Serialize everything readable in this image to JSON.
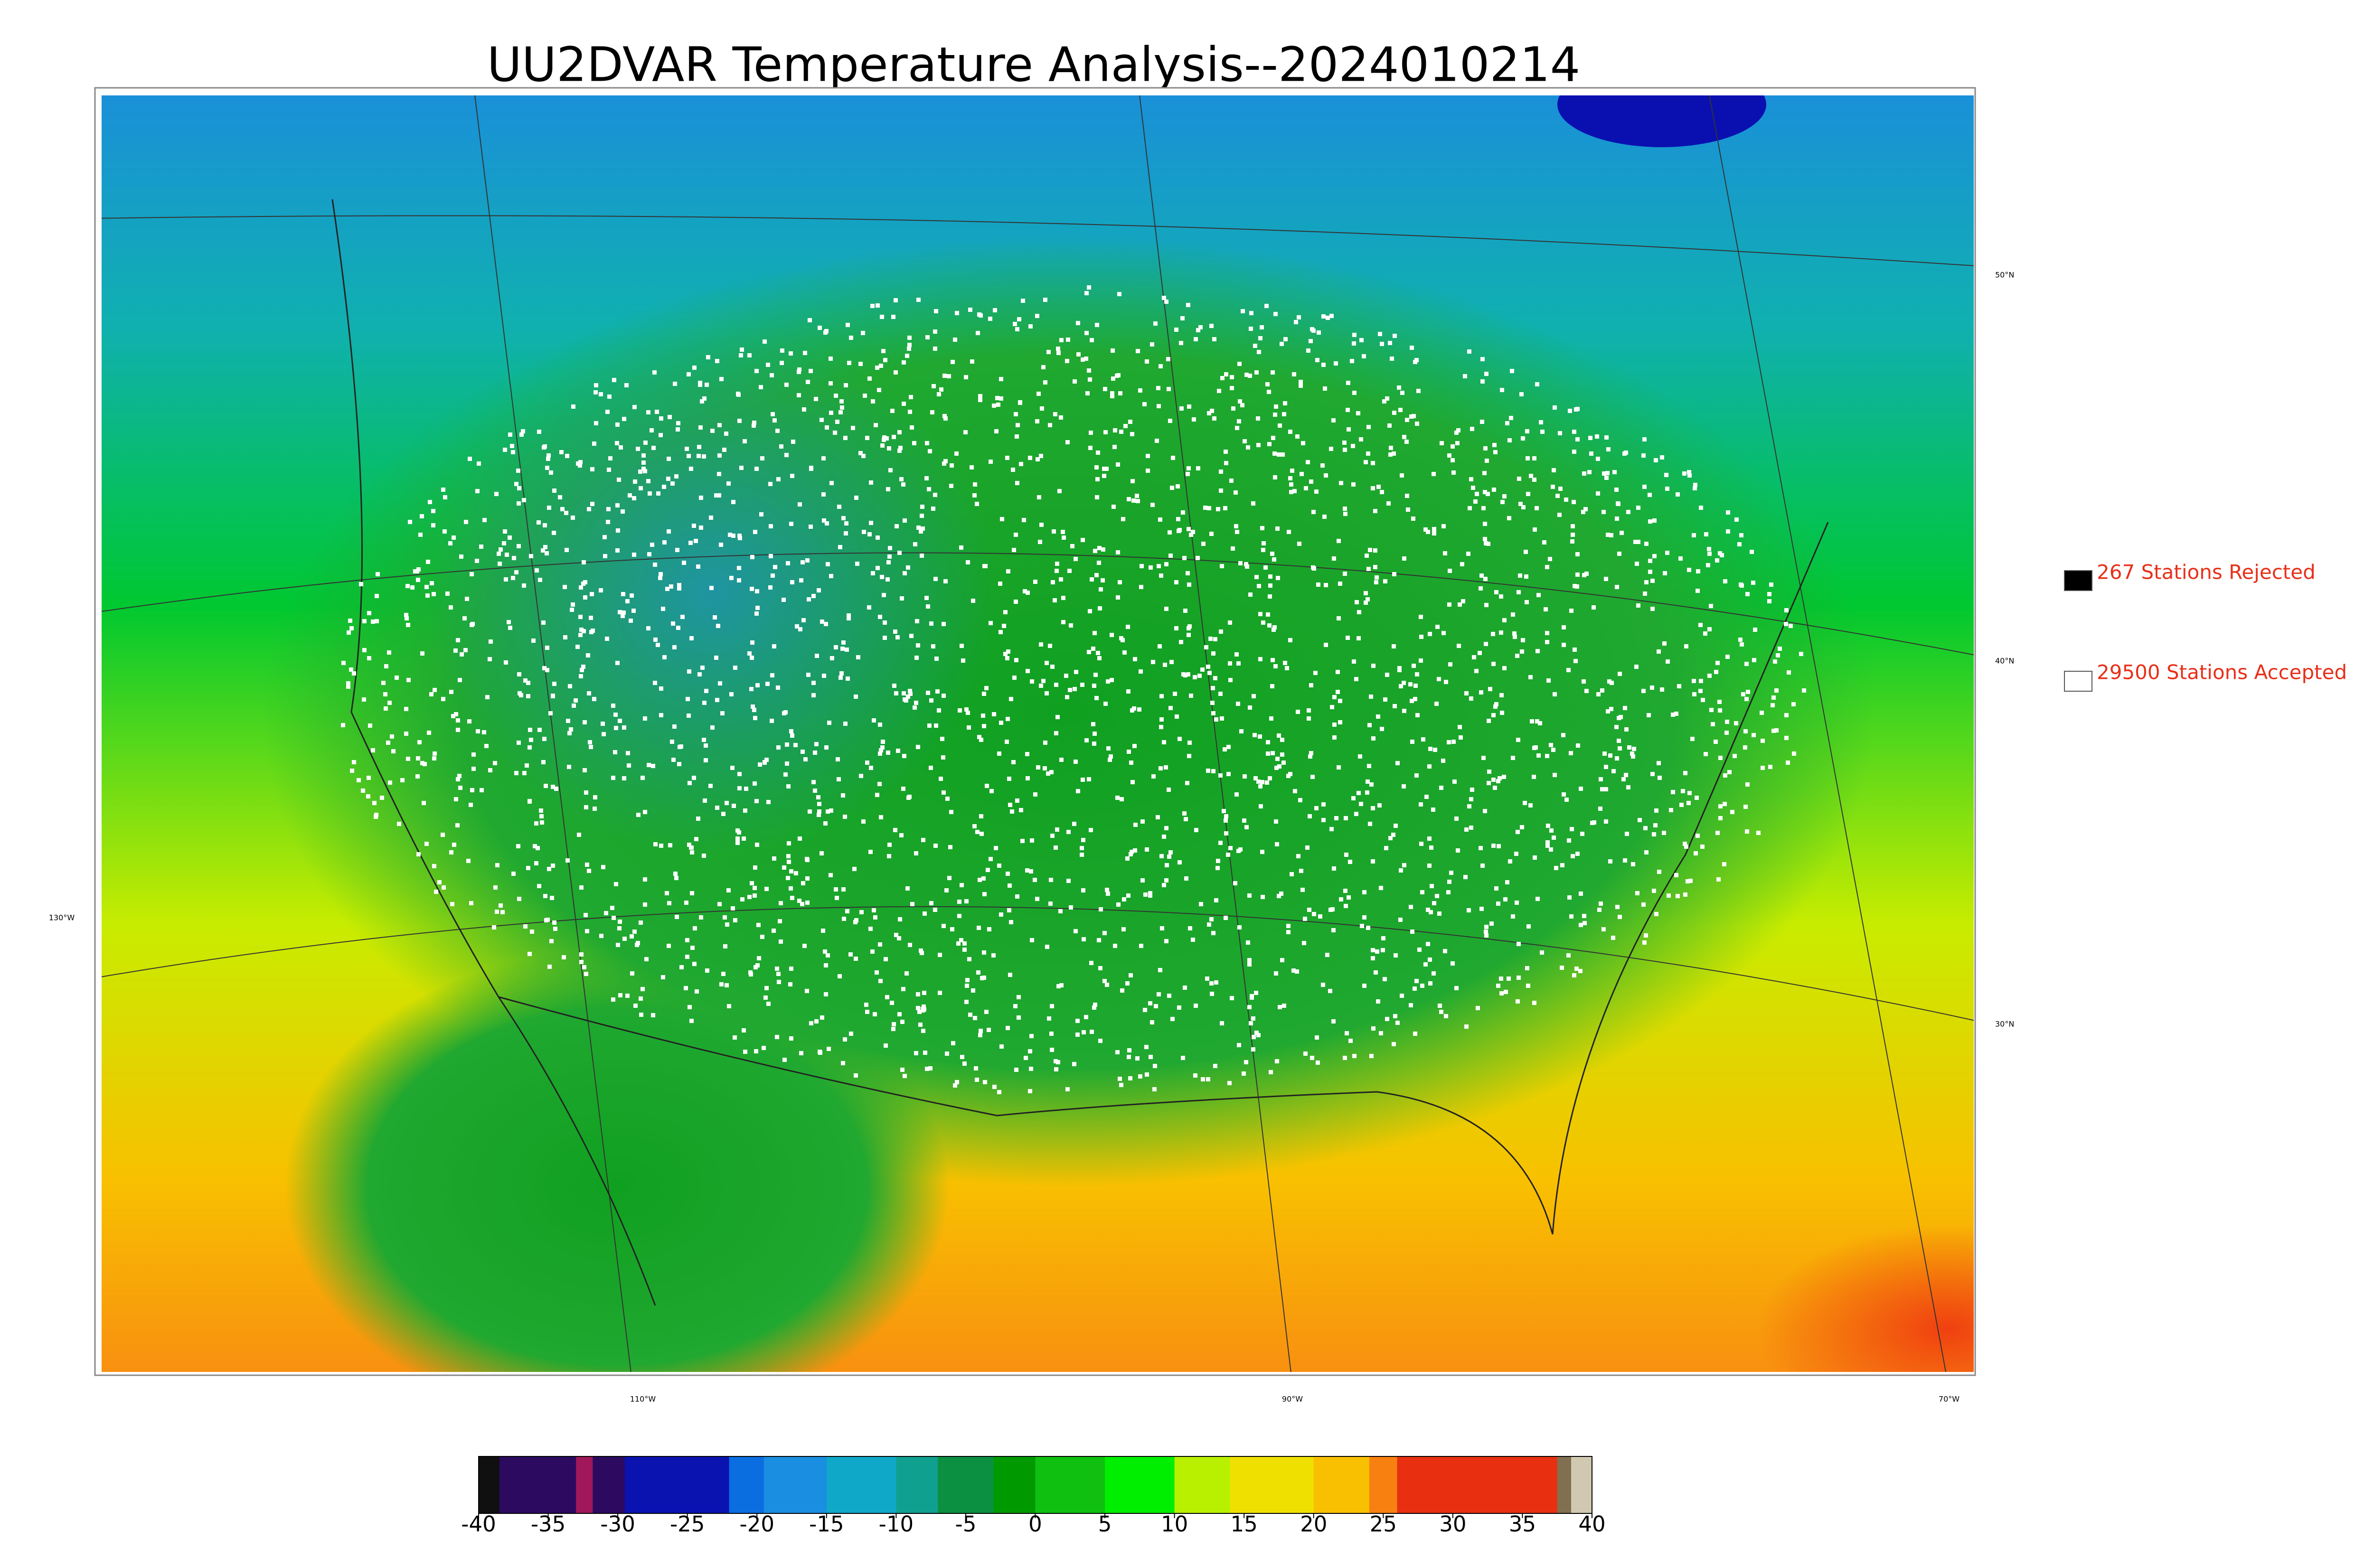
{
  "title": "UU2DVAR Temperature Analysis--2024010214",
  "legend": {
    "rejected": "267 Stations Rejected",
    "accepted": "29500 Stations Accepted"
  },
  "lat_labels": [
    "50°N",
    "40°N",
    "30°N"
  ],
  "lon_labels": [
    "130°W",
    "110°W",
    "90°W",
    "70°W"
  ],
  "colorbar": {
    "range": [
      -40,
      40
    ],
    "ticks": [
      -40,
      -35,
      -30,
      -25,
      -20,
      -15,
      -10,
      -5,
      0,
      5,
      10,
      15,
      20,
      25,
      30,
      35,
      40
    ],
    "bands": [
      {
        "from": -40,
        "to": -38.5,
        "color": "#101010"
      },
      {
        "from": -38.5,
        "to": -33,
        "color": "#2c0a60"
      },
      {
        "from": -33,
        "to": -31.8,
        "color": "#a0185a"
      },
      {
        "from": -31.8,
        "to": -29.5,
        "color": "#2c0a60"
      },
      {
        "from": -29.5,
        "to": -22,
        "color": "#0a12b0"
      },
      {
        "from": -22,
        "to": -19.5,
        "color": "#0a6ee0"
      },
      {
        "from": -19.5,
        "to": -15,
        "color": "#1a8ee0"
      },
      {
        "from": -15,
        "to": -10,
        "color": "#10a8c8"
      },
      {
        "from": -10,
        "to": -7,
        "color": "#10a090"
      },
      {
        "from": -7,
        "to": -3,
        "color": "#0a9040"
      },
      {
        "from": -3,
        "to": 0,
        "color": "#009a00"
      },
      {
        "from": 0,
        "to": 5,
        "color": "#10c010"
      },
      {
        "from": 5,
        "to": 10,
        "color": "#00ee00"
      },
      {
        "from": 10,
        "to": 14,
        "color": "#b8f000"
      },
      {
        "from": 14,
        "to": 20,
        "color": "#f0e000"
      },
      {
        "from": 20,
        "to": 24,
        "color": "#f8c000"
      },
      {
        "from": 24,
        "to": 26,
        "color": "#f88010"
      },
      {
        "from": 26,
        "to": 37.5,
        "color": "#e83010"
      },
      {
        "from": 37.5,
        "to": 38.5,
        "color": "#807050"
      },
      {
        "from": 38.5,
        "to": 40,
        "color": "#d0c8b0"
      }
    ]
  }
}
